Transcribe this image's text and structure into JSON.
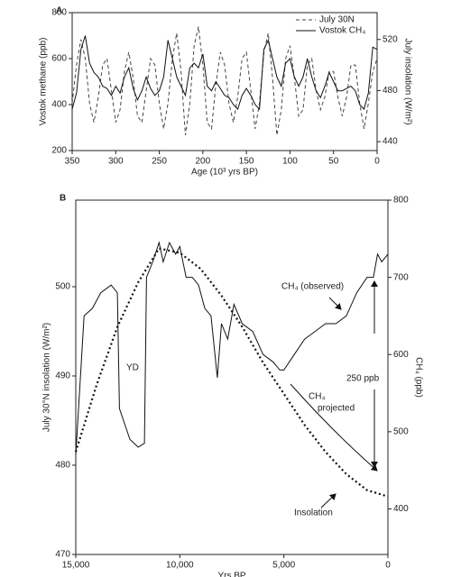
{
  "chart_data": [
    {
      "type": "line",
      "title": "A",
      "x_label": "Age (10³ yrs BP)",
      "y_label": "Vostok methane (ppb)",
      "y2_label": "July insolation (W/m²)",
      "x": [
        350,
        345,
        340,
        335,
        330,
        325,
        320,
        315,
        310,
        305,
        300,
        295,
        290,
        285,
        280,
        275,
        270,
        265,
        260,
        255,
        250,
        245,
        240,
        235,
        230,
        225,
        220,
        215,
        210,
        205,
        200,
        195,
        190,
        185,
        180,
        175,
        170,
        165,
        160,
        155,
        150,
        145,
        140,
        135,
        130,
        125,
        120,
        115,
        110,
        105,
        100,
        95,
        90,
        85,
        80,
        75,
        70,
        65,
        60,
        55,
        50,
        45,
        40,
        35,
        30,
        25,
        20,
        15,
        10,
        5,
        0
      ],
      "xlim": [
        350,
        0
      ],
      "xticks": [
        350,
        300,
        250,
        200,
        150,
        100,
        50,
        0
      ],
      "ylim": [
        200,
        800
      ],
      "yticks": [
        200,
        400,
        600,
        800
      ],
      "y2lim": [
        433,
        541
      ],
      "y2ticks": [
        440,
        480,
        520
      ],
      "legend": "top-right",
      "series": [
        {
          "name": "July 30N",
          "color": "#444",
          "dash": "dashed",
          "axis": "y2",
          "values": [
            470,
            500,
            520,
            505,
            470,
            455,
            475,
            500,
            505,
            480,
            455,
            465,
            495,
            510,
            490,
            460,
            455,
            480,
            505,
            500,
            470,
            450,
            470,
            505,
            525,
            495,
            445,
            470,
            515,
            530,
            500,
            455,
            450,
            485,
            510,
            500,
            470,
            455,
            475,
            505,
            510,
            480,
            450,
            470,
            510,
            525,
            490,
            445,
            465,
            505,
            515,
            490,
            460,
            465,
            500,
            505,
            480,
            465,
            475,
            495,
            495,
            475,
            460,
            475,
            500,
            500,
            470,
            450,
            470,
            495,
            505
          ]
        },
        {
          "name": "Vostok CH₄",
          "color": "#111",
          "dash": "solid",
          "axis": "y",
          "values": [
            380,
            450,
            640,
            700,
            580,
            540,
            520,
            480,
            470,
            440,
            480,
            450,
            520,
            560,
            470,
            420,
            460,
            520,
            470,
            440,
            460,
            520,
            680,
            600,
            520,
            480,
            440,
            560,
            580,
            560,
            620,
            480,
            460,
            500,
            470,
            440,
            430,
            400,
            380,
            440,
            470,
            440,
            400,
            380,
            640,
            680,
            600,
            520,
            480,
            580,
            600,
            520,
            480,
            520,
            600,
            520,
            460,
            430,
            480,
            540,
            500,
            460,
            460,
            470,
            480,
            460,
            400,
            380,
            450,
            650,
            640
          ]
        }
      ]
    },
    {
      "type": "line",
      "title": "B",
      "x_label": "Yrs BP",
      "y_label": "July 30°N insolation (W/m²)",
      "y2_label": "CH₄ (ppb)",
      "xlim": [
        15000,
        0
      ],
      "xticks": [
        {
          "value": 15000,
          "label": "15,000"
        },
        {
          "value": 10000,
          "label": "10,000"
        },
        {
          "value": 5000,
          "label": "5,000"
        },
        0
      ],
      "ylim": [
        470,
        509.7
      ],
      "yticks": [
        470,
        480,
        490,
        500
      ],
      "y2lim": [
        341,
        800
      ],
      "y2ticks": [
        400,
        500,
        600,
        700,
        800
      ],
      "annotations": [
        "YD",
        "CH₄ (observed)",
        "CH₄",
        "projected",
        "250 ppb",
        "Insolation"
      ],
      "series": [
        {
          "name": "Insolation",
          "color": "#111",
          "dash": "dotted",
          "axis": "y",
          "x": [
            15000,
            14000,
            13000,
            12000,
            11000,
            10000,
            9000,
            8000,
            7000,
            6000,
            5000,
            4000,
            3000,
            2000,
            1000,
            0
          ],
          "values": [
            481.5,
            489,
            495.5,
            500.5,
            504.3,
            503.8,
            502,
            499,
            495.5,
            491.5,
            488,
            484.5,
            481.5,
            479,
            477.2,
            476.5
          ]
        },
        {
          "name": "CH₄ (observed)",
          "color": "#111",
          "dash": "solid",
          "axis": "y2",
          "x": [
            15000,
            14600,
            14200,
            13800,
            13300,
            13000,
            12900,
            12400,
            12000,
            11700,
            11600,
            11300,
            11000,
            10800,
            10500,
            10200,
            10000,
            9700,
            9400,
            9100,
            8800,
            8500,
            8200,
            8000,
            7700,
            7400,
            7000,
            6500,
            6000,
            5500,
            5200,
            5000,
            4500,
            4000,
            3500,
            3000,
            2500,
            2000,
            1500,
            1000,
            700,
            500,
            300,
            0
          ],
          "values": [
            470,
            650,
            660,
            680,
            690,
            680,
            530,
            490,
            480,
            485,
            700,
            720,
            745,
            720,
            745,
            730,
            740,
            700,
            700,
            690,
            660,
            650,
            570,
            640,
            620,
            665,
            640,
            630,
            600,
            590,
            580,
            580,
            600,
            620,
            630,
            640,
            640,
            650,
            680,
            700,
            700,
            730,
            720,
            730
          ]
        }
      ]
    }
  ]
}
